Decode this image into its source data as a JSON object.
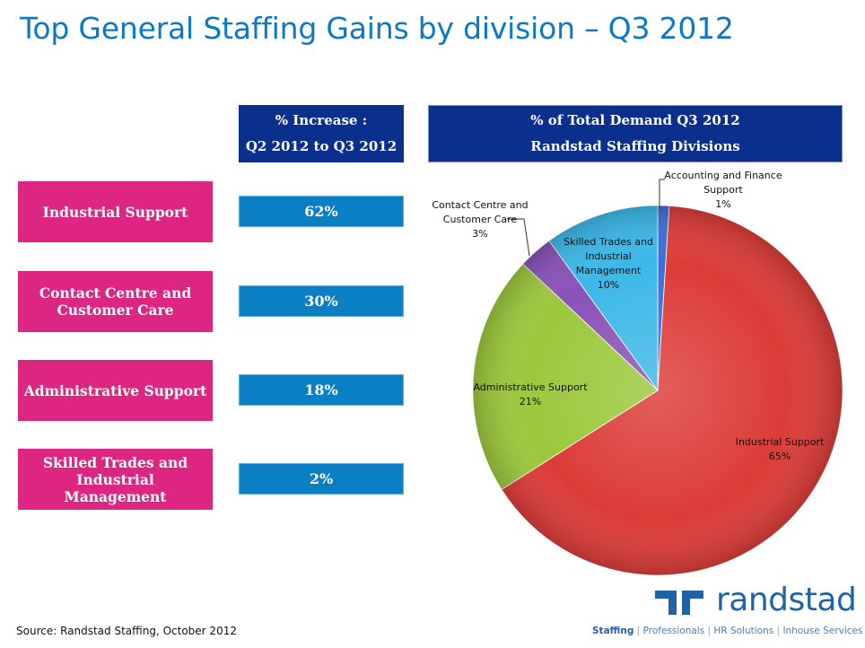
{
  "title": "Top General Staffing Gains by division – Q3 2012",
  "increase_header": {
    "line1": "% Increase :",
    "line2": "Q2 2012 to Q3 2012"
  },
  "pie_header": {
    "line1": "% of Total Demand Q3 2012",
    "line2": "Randstad Staffing Divisions"
  },
  "gains": [
    {
      "label": "Industrial Support",
      "value": "62%"
    },
    {
      "label": "Contact Centre and Customer Care",
      "value": "30%"
    },
    {
      "label": "Administrative Support",
      "value": "18%"
    },
    {
      "label": "Skilled Trades and Industrial Management",
      "value": "2%"
    }
  ],
  "chart_data": {
    "type": "pie",
    "title": "% of Total Demand Q3 2012 Randstad Staffing Divisions",
    "slices": [
      {
        "name": "Accounting and Finance Support",
        "value": 1,
        "label": "1%",
        "color": "#3f6fd6"
      },
      {
        "name": "Industrial Support",
        "value": 65,
        "label": "65%",
        "color": "#dc3c38"
      },
      {
        "name": "Administrative Support",
        "value": 21,
        "label": "21%",
        "color": "#9cc83c"
      },
      {
        "name": "Contact Centre and Customer Care",
        "value": 3,
        "label": "3%",
        "color": "#8a52b8"
      },
      {
        "name": "Skilled Trades and Industrial Management",
        "value": 10,
        "label": "10%",
        "color": "#3cb8e8"
      }
    ],
    "start_at": "12 o'clock",
    "direction": "clockwise",
    "legend": "none"
  },
  "source": "Source: Randstad Staffing, October 2012",
  "brand": {
    "name": "randstad",
    "color": "#1f62a8",
    "tagline": [
      "Staffing",
      "Professionals",
      "HR Solutions",
      "Inhouse Services"
    ]
  },
  "colors": {
    "title": "#0a79c8",
    "category_box": "#dd2582",
    "value_box": "#0b7fc4",
    "header_box": "#0a2f8c"
  }
}
